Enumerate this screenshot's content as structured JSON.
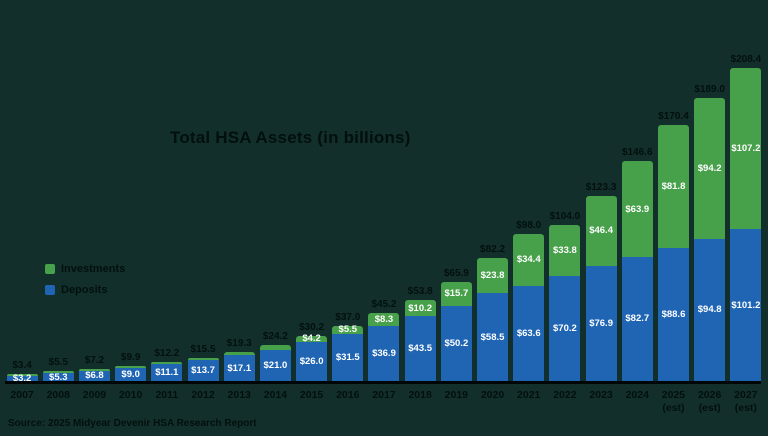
{
  "page": {
    "background_color": "#132f2c"
  },
  "chart_data": {
    "type": "bar",
    "stacked": true,
    "title": "Total HSA Assets (in billions)",
    "source": "Source: 2025 Midyear Devenir HSA Research Report",
    "legend_position": "left-middle",
    "grid": false,
    "ylim": [
      0,
      215
    ],
    "colors": {
      "investments": "#47a04a",
      "deposits": "#1f65b3",
      "axis": "#000604",
      "dark_text": "#02100d",
      "light_text": "#ffffff"
    },
    "legend": [
      {
        "name": "Investments",
        "color": "#47a04a"
      },
      {
        "name": "Deposits",
        "color": "#1f65b3"
      }
    ],
    "series_names": [
      "Deposits",
      "Investments"
    ],
    "bars": [
      {
        "year": "2007",
        "est_label": "",
        "deposits": 3.2,
        "investments": 0.2,
        "total_label": "$3.4",
        "deposits_label": "$3.2",
        "investments_label": ""
      },
      {
        "year": "2008",
        "est_label": "",
        "deposits": 5.3,
        "investments": 0.2,
        "total_label": "$5.5",
        "deposits_label": "$5.3",
        "investments_label": ""
      },
      {
        "year": "2009",
        "est_label": "",
        "deposits": 6.8,
        "investments": 0.4,
        "total_label": "$7.2",
        "deposits_label": "$6.8",
        "investments_label": ""
      },
      {
        "year": "2010",
        "est_label": "",
        "deposits": 9.0,
        "investments": 0.9,
        "total_label": "$9.9",
        "deposits_label": "$9.0",
        "investments_label": ""
      },
      {
        "year": "2011",
        "est_label": "",
        "deposits": 11.1,
        "investments": 1.1,
        "total_label": "$12.2",
        "deposits_label": "$11.1",
        "investments_label": ""
      },
      {
        "year": "2012",
        "est_label": "",
        "deposits": 13.7,
        "investments": 1.8,
        "total_label": "$15.5",
        "deposits_label": "$13.7",
        "investments_label": ""
      },
      {
        "year": "2013",
        "est_label": "",
        "deposits": 17.1,
        "investments": 2.2,
        "total_label": "$19.3",
        "deposits_label": "$17.1",
        "investments_label": ""
      },
      {
        "year": "2014",
        "est_label": "",
        "deposits": 21.0,
        "investments": 3.2,
        "total_label": "$24.2",
        "deposits_label": "$21.0",
        "investments_label": ""
      },
      {
        "year": "2015",
        "est_label": "",
        "deposits": 26.0,
        "investments": 4.2,
        "total_label": "$30.2",
        "deposits_label": "$26.0",
        "investments_label": "$4.2"
      },
      {
        "year": "2016",
        "est_label": "",
        "deposits": 31.5,
        "investments": 5.5,
        "total_label": "$37.0",
        "deposits_label": "$31.5",
        "investments_label": "$5.5"
      },
      {
        "year": "2017",
        "est_label": "",
        "deposits": 36.9,
        "investments": 8.3,
        "total_label": "$45.2",
        "deposits_label": "$36.9",
        "investments_label": "$8.3"
      },
      {
        "year": "2018",
        "est_label": "",
        "deposits": 43.5,
        "investments": 10.2,
        "total_label": "$53.8",
        "deposits_label": "$43.5",
        "investments_label": "$10.2"
      },
      {
        "year": "2019",
        "est_label": "",
        "deposits": 50.2,
        "investments": 15.7,
        "total_label": "$65.9",
        "deposits_label": "$50.2",
        "investments_label": "$15.7"
      },
      {
        "year": "2020",
        "est_label": "",
        "deposits": 58.5,
        "investments": 23.8,
        "total_label": "$82.2",
        "deposits_label": "$58.5",
        "investments_label": "$23.8"
      },
      {
        "year": "2021",
        "est_label": "",
        "deposits": 63.6,
        "investments": 34.4,
        "total_label": "$98.0",
        "deposits_label": "$63.6",
        "investments_label": "$34.4"
      },
      {
        "year": "2022",
        "est_label": "",
        "deposits": 70.2,
        "investments": 33.8,
        "total_label": "$104.0",
        "deposits_label": "$70.2",
        "investments_label": "$33.8"
      },
      {
        "year": "2023",
        "est_label": "",
        "deposits": 76.9,
        "investments": 46.4,
        "total_label": "$123.3",
        "deposits_label": "$76.9",
        "investments_label": "$46.4"
      },
      {
        "year": "2024",
        "est_label": "",
        "deposits": 82.7,
        "investments": 63.9,
        "total_label": "$146.6",
        "deposits_label": "$82.7",
        "investments_label": "$63.9"
      },
      {
        "year": "2025",
        "est_label": "(est)",
        "deposits": 88.6,
        "investments": 81.8,
        "total_label": "$170.4",
        "deposits_label": "$88.6",
        "investments_label": "$81.8"
      },
      {
        "year": "2026",
        "est_label": "(est)",
        "deposits": 94.8,
        "investments": 94.2,
        "total_label": "$189.0",
        "deposits_label": "$94.8",
        "investments_label": "$94.2"
      },
      {
        "year": "2027",
        "est_label": "(est)",
        "deposits": 101.2,
        "investments": 107.2,
        "total_label": "$208.4",
        "deposits_label": "$101.2",
        "investments_label": "$107.2"
      }
    ]
  }
}
